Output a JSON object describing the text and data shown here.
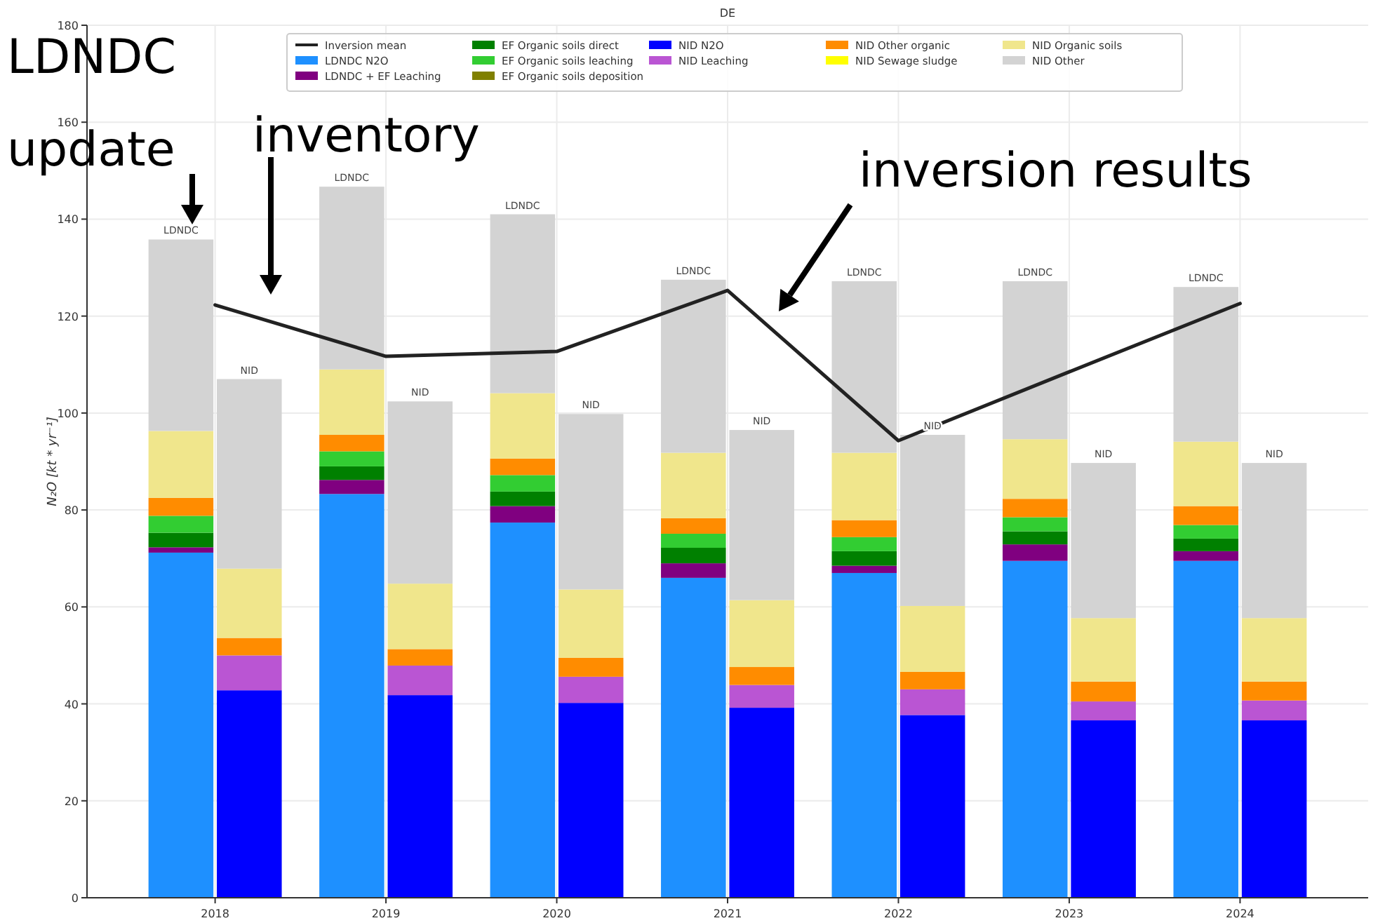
{
  "chart_data": {
    "type": "bar",
    "stacked": true,
    "title": "DE",
    "ylabel": "N₂O [kt * yr⁻¹]",
    "xlim": [
      2017.25,
      2024.75
    ],
    "xticks": [
      2018,
      2019,
      2020,
      2021,
      2022,
      2023,
      2024
    ],
    "ylim": [
      0,
      180
    ],
    "yticks": [
      0,
      20,
      40,
      60,
      80,
      100,
      120,
      140,
      160,
      180
    ],
    "grid": true,
    "legend": "top",
    "x": [
      2017.8,
      2018.2,
      2018.8,
      2019.2,
      2019.8,
      2020.2,
      2020.8,
      2021.2,
      2021.8,
      2022.2,
      2022.8,
      2023.2,
      2023.8,
      2024.2
    ],
    "series": [
      {
        "name": "Inversion mean",
        "type": "line",
        "color": "#222222",
        "x": [
          2018,
          2019,
          2020,
          2021,
          2022,
          2023,
          2024
        ],
        "values": [
          122.3,
          111.7,
          112.7,
          125.3,
          94.3,
          108.5,
          122.6
        ]
      },
      {
        "name": "LDNDC N2O",
        "color": "#1e90ff",
        "values": [
          71.2,
          null,
          83.3,
          null,
          77.4,
          null,
          66.0,
          null,
          67.0,
          null,
          69.5,
          null,
          69.5,
          null
        ]
      },
      {
        "name": "LDNDC + EF Leaching",
        "color": "#800080",
        "values": [
          1.1,
          null,
          2.9,
          null,
          3.4,
          null,
          3.0,
          null,
          1.5,
          null,
          3.4,
          null,
          2.0,
          null
        ]
      },
      {
        "name": "EF Organic soils direct",
        "color": "#008000",
        "values": [
          3.0,
          null,
          2.8,
          null,
          3.0,
          null,
          3.2,
          null,
          3.0,
          null,
          2.7,
          null,
          2.6,
          null
        ]
      },
      {
        "name": "EF Organic soils leaching",
        "color": "#32cd32",
        "values": [
          3.5,
          null,
          3.1,
          null,
          3.4,
          null,
          2.9,
          null,
          2.9,
          null,
          2.9,
          null,
          2.8,
          null
        ]
      },
      {
        "name": "EF Organic soils deposition",
        "color": "#808000",
        "values": [
          0,
          null,
          0,
          null,
          0,
          null,
          0,
          null,
          0,
          null,
          0,
          null,
          0,
          null
        ]
      },
      {
        "name": "NID N2O",
        "color": "#0000ff",
        "values": [
          null,
          42.8,
          null,
          41.8,
          null,
          40.2,
          null,
          39.2,
          null,
          37.7,
          null,
          36.6,
          null,
          36.6
        ]
      },
      {
        "name": "NID Leaching",
        "color": "#ba55d3",
        "values": [
          null,
          7.2,
          null,
          6.1,
          null,
          5.4,
          null,
          4.7,
          null,
          5.3,
          null,
          3.9,
          null,
          4.1
        ]
      },
      {
        "name": "NID Other organic",
        "color": "#ff8c00",
        "values": [
          3.7,
          3.6,
          3.4,
          3.4,
          3.4,
          3.9,
          3.2,
          3.7,
          3.5,
          3.6,
          3.8,
          4.1,
          3.9,
          3.9
        ]
      },
      {
        "name": "NID Sewage sludge",
        "color": "#ffff00",
        "values": [
          0,
          0,
          0,
          0,
          0,
          0,
          0,
          0,
          0,
          0,
          0,
          0,
          0,
          0
        ]
      },
      {
        "name": "NID Organic soils",
        "color": "#f0e68c",
        "values": [
          13.8,
          14.3,
          13.5,
          13.5,
          13.5,
          14.1,
          13.5,
          13.8,
          13.9,
          13.6,
          12.3,
          13.1,
          13.3,
          13.1
        ]
      },
      {
        "name": "NID Other",
        "color": "#d3d3d3",
        "values": [
          39.5,
          39.1,
          37.7,
          37.6,
          36.9,
          36.2,
          35.7,
          35.1,
          35.4,
          35.3,
          32.6,
          32.0,
          31.9,
          32.0
        ]
      }
    ],
    "annotations": [
      "LDNDC update",
      "inventory",
      "inversion results",
      {
        "text": "LDNDC",
        "x": 2017.8,
        "y": 135.8
      },
      {
        "text": "NID",
        "x": 2018.2,
        "y": 107.0
      },
      {
        "text": "LDNDC",
        "x": 2018.8,
        "y": 146.7
      },
      {
        "text": "NID",
        "x": 2019.2,
        "y": 102.4
      },
      {
        "text": "LDNDC",
        "x": 2019.8,
        "y": 141.0
      },
      {
        "text": "NID",
        "x": 2020.2,
        "y": 99.8
      },
      {
        "text": "LDNDC",
        "x": 2020.8,
        "y": 127.5
      },
      {
        "text": "NID",
        "x": 2021.2,
        "y": 96.5
      },
      {
        "text": "LDNDC",
        "x": 2021.8,
        "y": 127.2
      },
      {
        "text": "NID",
        "x": 2022.2,
        "y": 95.5
      },
      {
        "text": "LDNDC",
        "x": 2022.8,
        "y": 127.2
      },
      {
        "text": "NID",
        "x": 2023.2,
        "y": 89.7
      },
      {
        "text": "LDNDC",
        "x": 2023.8,
        "y": 126.0
      },
      {
        "text": "NID",
        "x": 2024.2,
        "y": 89.7
      }
    ]
  }
}
